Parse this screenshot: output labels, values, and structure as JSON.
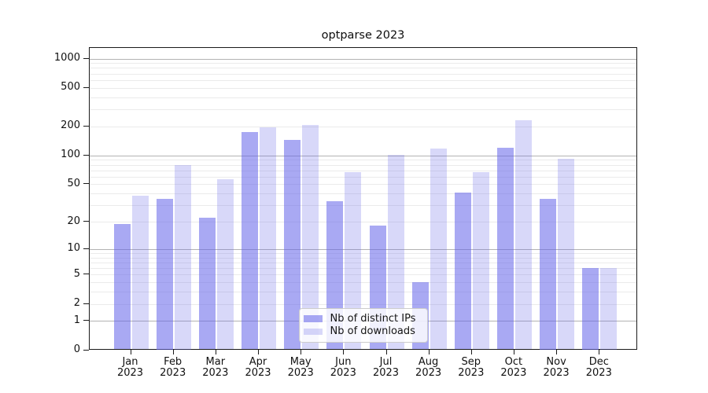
{
  "title": "optparse 2023",
  "colors": {
    "bar_ips": "rgba(99,99,233,0.55)",
    "bar_downloads": "rgba(99,99,233,0.25)",
    "grid_major": "#b3b3b3",
    "grid_minor": "#ebebeb",
    "spine": "#1a1a1a",
    "text": "#111111"
  },
  "legend": {
    "position": "lower center",
    "items": [
      {
        "label": "Nb of distinct IPs"
      },
      {
        "label": "Nb of downloads"
      }
    ]
  },
  "chart_data": {
    "type": "bar",
    "title": "optparse 2023",
    "categories": [
      "Jan",
      "Feb",
      "Mar",
      "Apr",
      "May",
      "Jun",
      "Jul",
      "Aug",
      "Sep",
      "Oct",
      "Nov",
      "Dec"
    ],
    "year_label": "2023",
    "series": [
      {
        "name": "Nb of distinct IPs",
        "color": "rgba(99,99,233,0.55)",
        "values": [
          19,
          35,
          22,
          175,
          144,
          33,
          18,
          4,
          41,
          119,
          35,
          6
        ]
      },
      {
        "name": "Nb of downloads",
        "color": "rgba(99,99,233,0.25)",
        "values": [
          38,
          80,
          56,
          196,
          208,
          67,
          101,
          117,
          67,
          230,
          92,
          6
        ]
      }
    ],
    "yscale": "log1p",
    "ylim": [
      0,
      1285
    ],
    "xlim": [
      -0.97,
      11.9
    ],
    "yticks": [
      0,
      1,
      2,
      5,
      10,
      20,
      50,
      100,
      200,
      500,
      1000
    ],
    "ytick_major": [
      1,
      10,
      100,
      1000
    ],
    "grid": true,
    "legend_position": "lower center"
  }
}
